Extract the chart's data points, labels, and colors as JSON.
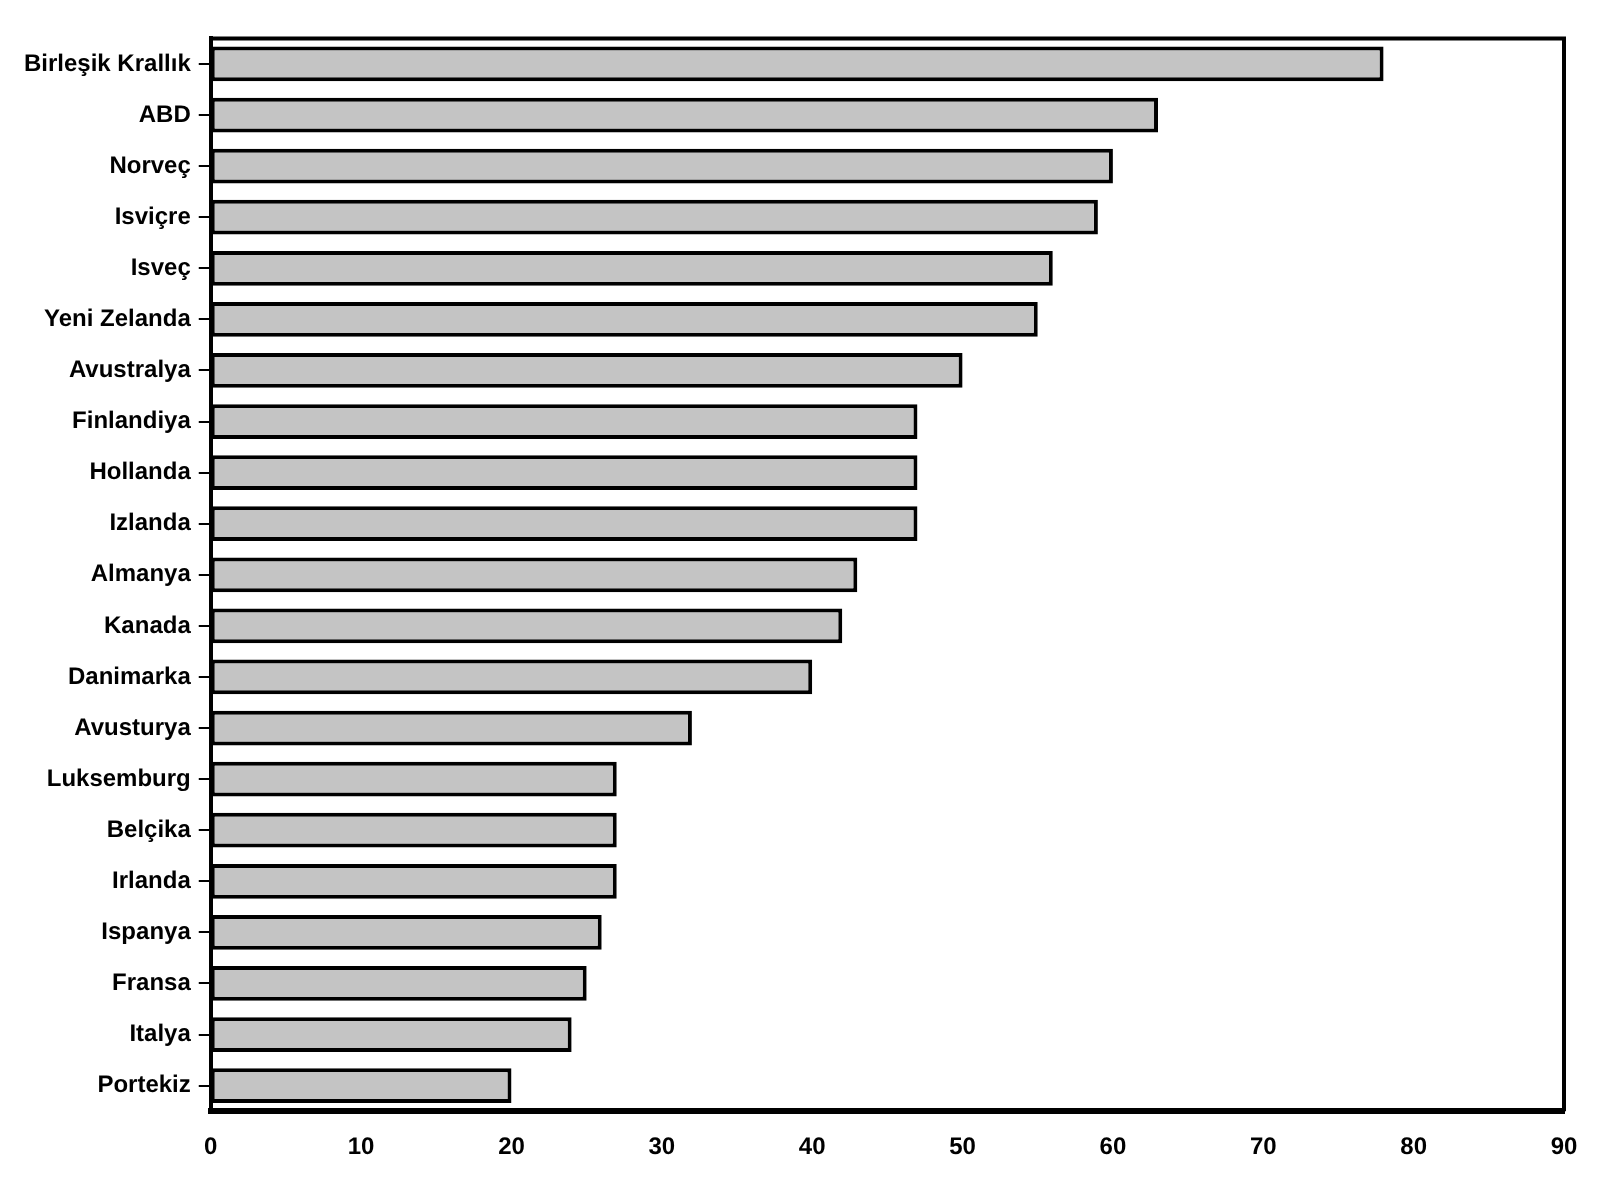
{
  "chart_data": {
    "type": "bar",
    "orientation": "horizontal",
    "categories": [
      "Birleşik Krallık",
      "ABD",
      "Norveç",
      "Isviçre",
      "Isveç",
      "Yeni Zelanda",
      "Avustralya",
      "Finlandiya",
      "Hollanda",
      "Izlanda",
      "Almanya",
      "Kanada",
      "Danimarka",
      "Avusturya",
      "Luksemburg",
      "Belçika",
      "Irlanda",
      "Ispanya",
      "Fransa",
      "Italya",
      "Portekiz"
    ],
    "values": [
      78,
      63,
      60,
      59,
      56,
      55,
      50,
      47,
      47,
      47,
      43,
      42,
      40,
      32,
      27,
      27,
      27,
      26,
      25,
      24,
      20
    ],
    "color": "#c4c4c4",
    "xlim": [
      0,
      90
    ],
    "xticks": [
      0,
      10,
      20,
      30,
      40,
      50,
      60,
      70,
      80,
      90
    ],
    "grid": false,
    "legend": false
  }
}
